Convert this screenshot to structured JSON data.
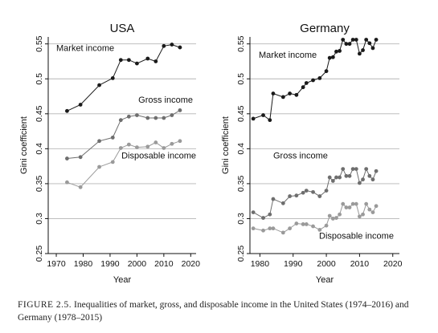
{
  "chart_data": [
    {
      "type": "line",
      "title": "USA",
      "xlabel": "Year",
      "ylabel": "Gini coefficient",
      "xlim": [
        1967,
        2022
      ],
      "ylim": [
        0.25,
        0.56
      ],
      "xticks": [
        1970,
        1980,
        1990,
        2000,
        2010,
        2020
      ],
      "yticks": [
        0.25,
        0.3,
        0.35,
        0.4,
        0.45,
        0.5,
        0.55
      ],
      "grid": "horizontal",
      "series": [
        {
          "name": "Market income",
          "color": "#1a1a1a",
          "x": [
            1974,
            1979,
            1986,
            1991,
            1994,
            1997,
            2000,
            2004,
            2007,
            2010,
            2013,
            2016
          ],
          "y": [
            0.454,
            0.463,
            0.491,
            0.501,
            0.527,
            0.527,
            0.522,
            0.529,
            0.525,
            0.547,
            0.549,
            0.545
          ]
        },
        {
          "name": "Gross income",
          "color": "#6e6e6e",
          "x": [
            1974,
            1979,
            1986,
            1991,
            1994,
            1997,
            2000,
            2004,
            2007,
            2010,
            2013,
            2016
          ],
          "y": [
            0.386,
            0.388,
            0.411,
            0.416,
            0.441,
            0.446,
            0.448,
            0.444,
            0.444,
            0.444,
            0.448,
            0.455
          ]
        },
        {
          "name": "Disposable income",
          "color": "#9a9a9a",
          "x": [
            1974,
            1979,
            1986,
            1991,
            1994,
            1997,
            2000,
            2004,
            2007,
            2010,
            2013,
            2016
          ],
          "y": [
            0.352,
            0.345,
            0.374,
            0.381,
            0.401,
            0.406,
            0.402,
            0.403,
            0.409,
            0.401,
            0.407,
            0.411
          ]
        }
      ]
    },
    {
      "type": "line",
      "title": "Germany",
      "xlabel": "Year",
      "ylabel": "Gini coefficient",
      "xlim": [
        1977,
        2022
      ],
      "ylim": [
        0.25,
        0.56
      ],
      "xticks": [
        1980,
        1990,
        2000,
        2010,
        2020
      ],
      "yticks": [
        0.25,
        0.3,
        0.35,
        0.4,
        0.45,
        0.5,
        0.55
      ],
      "grid": "horizontal",
      "series": [
        {
          "name": "Market income",
          "color": "#1a1a1a",
          "x": [
            1978,
            1981,
            1983,
            1984,
            1987,
            1989,
            1991,
            1993,
            1994,
            1996,
            1998,
            2000,
            2001,
            2002,
            2003,
            2004,
            2005,
            2006,
            2007,
            2008,
            2009,
            2010,
            2011,
            2012,
            2013,
            2014,
            2015
          ],
          "y": [
            0.443,
            0.448,
            0.441,
            0.479,
            0.474,
            0.479,
            0.477,
            0.488,
            0.494,
            0.498,
            0.501,
            0.511,
            0.53,
            0.531,
            0.539,
            0.54,
            0.556,
            0.55,
            0.55,
            0.556,
            0.556,
            0.536,
            0.541,
            0.556,
            0.551,
            0.544,
            0.556
          ]
        },
        {
          "name": "Gross income",
          "color": "#6e6e6e",
          "x": [
            1978,
            1981,
            1983,
            1984,
            1987,
            1989,
            1991,
            1993,
            1994,
            1996,
            1998,
            2000,
            2001,
            2002,
            2003,
            2004,
            2005,
            2006,
            2007,
            2008,
            2009,
            2010,
            2011,
            2012,
            2013,
            2014,
            2015
          ],
          "y": [
            0.309,
            0.301,
            0.306,
            0.328,
            0.322,
            0.332,
            0.333,
            0.337,
            0.34,
            0.338,
            0.332,
            0.34,
            0.359,
            0.354,
            0.359,
            0.359,
            0.371,
            0.361,
            0.361,
            0.371,
            0.371,
            0.351,
            0.356,
            0.371,
            0.361,
            0.356,
            0.368
          ]
        },
        {
          "name": "Disposable income",
          "color": "#9a9a9a",
          "x": [
            1978,
            1981,
            1983,
            1984,
            1987,
            1989,
            1991,
            1993,
            1994,
            1996,
            1998,
            2000,
            2001,
            2002,
            2003,
            2004,
            2005,
            2006,
            2007,
            2008,
            2009,
            2010,
            2011,
            2012,
            2013,
            2014,
            2015
          ],
          "y": [
            0.286,
            0.283,
            0.286,
            0.286,
            0.28,
            0.286,
            0.293,
            0.292,
            0.292,
            0.289,
            0.284,
            0.29,
            0.304,
            0.3,
            0.301,
            0.306,
            0.321,
            0.316,
            0.316,
            0.321,
            0.321,
            0.303,
            0.306,
            0.321,
            0.313,
            0.309,
            0.318
          ]
        }
      ]
    }
  ],
  "caption": {
    "label": "FIGURE 2.5.",
    "text": "Inequalities of market, gross, and disposable income in the United States (1974–2016) and Germany (1978–2015)"
  }
}
